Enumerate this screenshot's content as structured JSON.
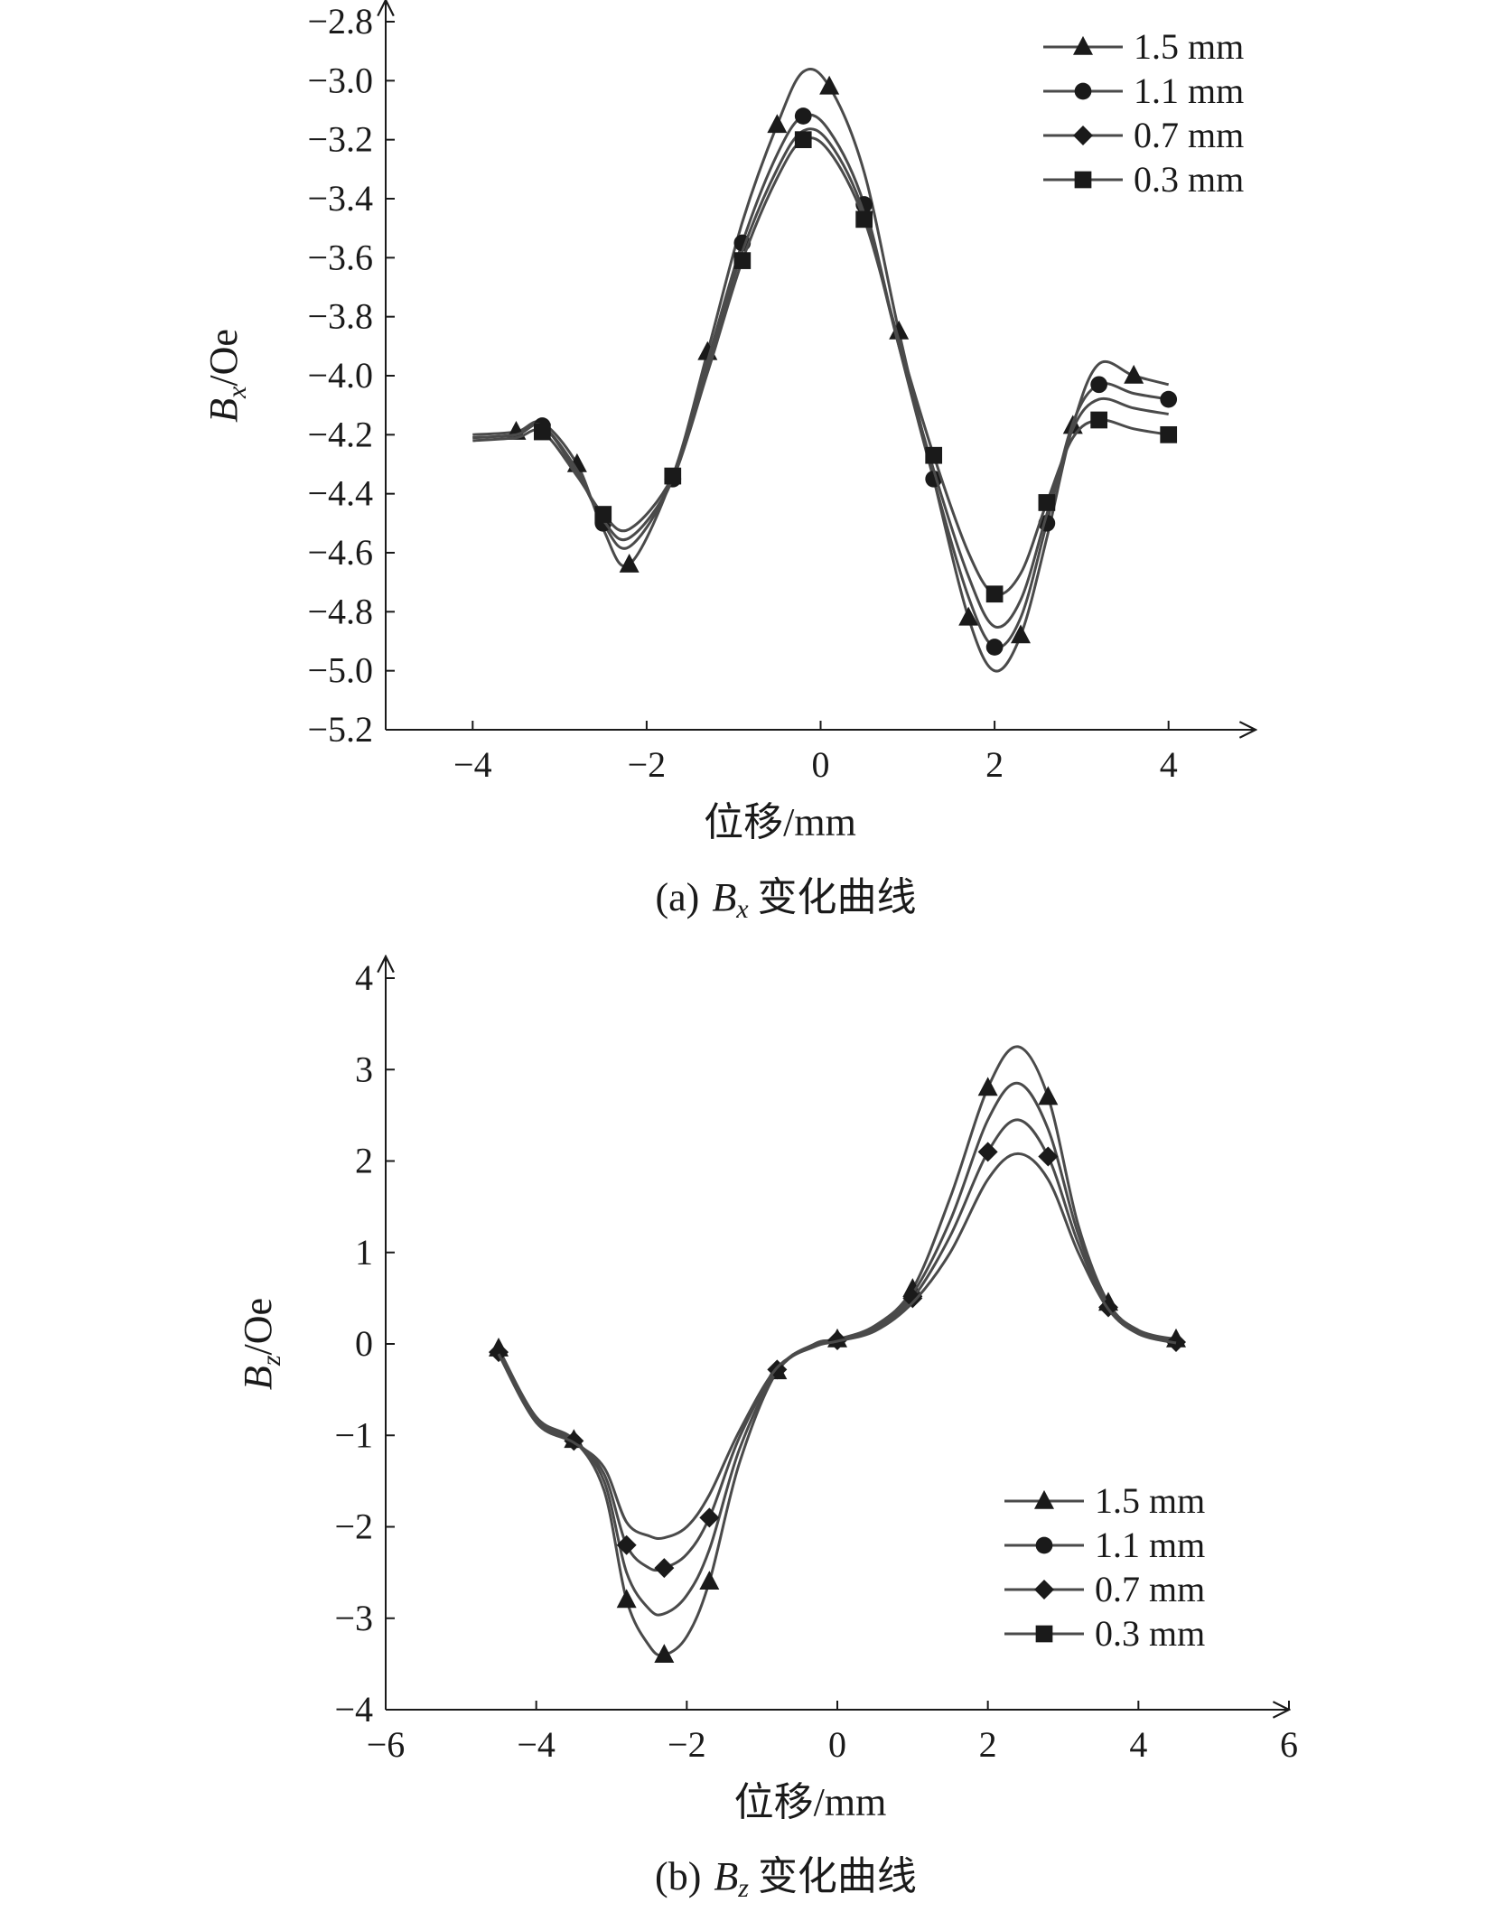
{
  "chart_data": [
    {
      "type": "line",
      "panel": "a",
      "caption": {
        "prefix": "(a)",
        "var_letter": "B",
        "var_sub": "x",
        "suffix": "变化曲线"
      },
      "xlabel": "位移/mm",
      "ylabel": {
        "letter": "B",
        "sub": "x",
        "unit": "/Oe"
      },
      "xlim": [
        -5,
        5
      ],
      "ylim": [
        -5.2,
        -2.8
      ],
      "xticks": [
        -4,
        -2,
        0,
        2,
        4
      ],
      "xtick_labels": [
        "−4",
        "−2",
        "0",
        "2",
        "4"
      ],
      "yticks": [
        -2.8,
        -3.0,
        -3.2,
        -3.4,
        -3.6,
        -3.8,
        -4.0,
        -4.2,
        -4.4,
        -4.6,
        -4.8,
        -5.0,
        -5.2
      ],
      "ytick_labels": [
        "−2.8",
        "−3.0",
        "−3.2",
        "−3.4",
        "−3.6",
        "−3.8",
        "−4.0",
        "−4.2",
        "−4.4",
        "−4.6",
        "−4.8",
        "−5.0",
        "−5.2"
      ],
      "grid": false,
      "legend_position": "top-right",
      "series": [
        {
          "name": "1.5 mm",
          "marker": "triangle",
          "x": [
            -4.0,
            -3.5,
            -3.2,
            -2.8,
            -2.5,
            -2.2,
            -1.7,
            -1.3,
            -0.9,
            -0.5,
            -0.2,
            0.1,
            0.5,
            0.9,
            1.3,
            1.7,
            2.0,
            2.3,
            2.6,
            2.9,
            3.2,
            3.6,
            4.0
          ],
          "y": [
            -4.2,
            -4.19,
            -4.16,
            -4.3,
            -4.52,
            -4.64,
            -4.34,
            -3.92,
            -3.48,
            -3.15,
            -2.97,
            -3.02,
            -3.31,
            -3.85,
            -4.35,
            -4.82,
            -5.0,
            -4.88,
            -4.55,
            -4.17,
            -3.96,
            -4.0,
            -4.03
          ]
        },
        {
          "name": "1.1 mm",
          "marker": "circle",
          "x": [
            -4.0,
            -3.5,
            -3.2,
            -2.8,
            -2.5,
            -2.2,
            -1.7,
            -1.3,
            -0.9,
            -0.5,
            -0.2,
            0.1,
            0.5,
            0.9,
            1.3,
            1.7,
            2.0,
            2.3,
            2.6,
            2.9,
            3.2,
            3.6,
            4.0
          ],
          "y": [
            -4.21,
            -4.2,
            -4.17,
            -4.32,
            -4.5,
            -4.58,
            -4.35,
            -3.95,
            -3.55,
            -3.25,
            -3.12,
            -3.17,
            -3.42,
            -3.9,
            -4.35,
            -4.75,
            -4.92,
            -4.82,
            -4.5,
            -4.16,
            -4.03,
            -4.06,
            -4.08
          ]
        },
        {
          "name": "0.7 mm",
          "marker": "diamond",
          "x": [
            -4.0,
            -3.5,
            -3.2,
            -2.8,
            -2.5,
            -2.2,
            -1.7,
            -1.3,
            -0.9,
            -0.5,
            -0.2,
            0.1,
            0.5,
            0.9,
            1.3,
            1.7,
            2.0,
            2.3,
            2.6,
            2.9,
            3.2,
            3.6,
            4.0
          ],
          "y": [
            -4.21,
            -4.2,
            -4.17,
            -4.33,
            -4.49,
            -4.55,
            -4.35,
            -3.97,
            -3.58,
            -3.3,
            -3.17,
            -3.21,
            -3.45,
            -3.9,
            -4.32,
            -4.68,
            -4.85,
            -4.76,
            -4.47,
            -4.18,
            -4.08,
            -4.11,
            -4.13
          ]
        },
        {
          "name": "0.3 mm",
          "marker": "square",
          "x": [
            -4.0,
            -3.5,
            -3.2,
            -2.8,
            -2.5,
            -2.2,
            -1.7,
            -1.3,
            -0.9,
            -0.5,
            -0.2,
            0.1,
            0.5,
            0.9,
            1.3,
            1.7,
            2.0,
            2.3,
            2.6,
            2.9,
            3.2,
            3.6,
            4.0
          ],
          "y": [
            -4.22,
            -4.21,
            -4.19,
            -4.34,
            -4.47,
            -4.52,
            -4.34,
            -3.99,
            -3.61,
            -3.33,
            -3.2,
            -3.24,
            -3.47,
            -3.88,
            -4.27,
            -4.6,
            -4.74,
            -4.67,
            -4.43,
            -4.21,
            -4.15,
            -4.18,
            -4.2
          ]
        }
      ]
    },
    {
      "type": "line",
      "panel": "b",
      "caption": {
        "prefix": "(b)",
        "var_letter": "B",
        "var_sub": "z",
        "suffix": "变化曲线"
      },
      "xlabel": "位移/mm",
      "ylabel": {
        "letter": "B",
        "sub": "z",
        "unit": "/Oe"
      },
      "xlim": [
        -6,
        6
      ],
      "ylim": [
        -4,
        4
      ],
      "xticks": [
        -6,
        -4,
        -2,
        0,
        2,
        4,
        6
      ],
      "xtick_labels": [
        "−6",
        "−4",
        "−2",
        "0",
        "2",
        "4",
        "6"
      ],
      "yticks": [
        4,
        3,
        2,
        1,
        0,
        -1,
        -2,
        -3,
        -4
      ],
      "ytick_labels": [
        "4",
        "3",
        "2",
        "1",
        "0",
        "−1",
        "−2",
        "−3",
        "−4"
      ],
      "grid": false,
      "legend_position": "bottom-right",
      "series": [
        {
          "name": "1.5 mm",
          "marker": "triangle",
          "x": [
            -4.5,
            -4.0,
            -3.5,
            -3.1,
            -2.8,
            -2.5,
            -2.3,
            -2.0,
            -1.7,
            -1.3,
            -0.8,
            -0.3,
            0.0,
            0.5,
            1.0,
            1.5,
            2.0,
            2.4,
            2.8,
            3.2,
            3.6,
            4.0,
            4.5
          ],
          "y": [
            -0.05,
            -0.8,
            -1.05,
            -1.6,
            -2.8,
            -3.3,
            -3.4,
            -3.2,
            -2.6,
            -1.3,
            -0.3,
            0.0,
            0.05,
            0.2,
            0.6,
            1.6,
            2.8,
            3.25,
            2.7,
            1.3,
            0.45,
            0.15,
            0.05
          ]
        },
        {
          "name": "1.1 mm",
          "marker": "circle",
          "x": [
            -4.5,
            -4.0,
            -3.5,
            -3.1,
            -2.8,
            -2.5,
            -2.3,
            -2.0,
            -1.7,
            -1.3,
            -0.8,
            -0.3,
            0.0,
            0.5,
            1.0,
            1.5,
            2.0,
            2.4,
            2.8,
            3.2,
            3.6,
            4.0,
            4.5
          ],
          "y": [
            -0.07,
            -0.82,
            -1.05,
            -1.5,
            -2.5,
            -2.9,
            -2.95,
            -2.75,
            -2.25,
            -1.15,
            -0.3,
            0.0,
            0.05,
            0.18,
            0.55,
            1.35,
            2.45,
            2.85,
            2.35,
            1.2,
            0.42,
            0.13,
            0.03
          ]
        },
        {
          "name": "0.7 mm",
          "marker": "diamond",
          "x": [
            -4.5,
            -4.0,
            -3.5,
            -3.1,
            -2.8,
            -2.5,
            -2.3,
            -2.0,
            -1.7,
            -1.3,
            -0.8,
            -0.3,
            0.0,
            0.5,
            1.0,
            1.5,
            2.0,
            2.4,
            2.8,
            3.2,
            3.6,
            4.0,
            4.5
          ],
          "y": [
            -0.09,
            -0.84,
            -1.06,
            -1.42,
            -2.2,
            -2.45,
            -2.45,
            -2.3,
            -1.9,
            -1.02,
            -0.28,
            -0.02,
            0.04,
            0.16,
            0.5,
            1.18,
            2.1,
            2.45,
            2.05,
            1.1,
            0.4,
            0.12,
            0.02
          ]
        },
        {
          "name": "0.3 mm",
          "marker": "square",
          "x": [
            -4.5,
            -4.0,
            -3.5,
            -3.1,
            -2.8,
            -2.5,
            -2.3,
            -2.0,
            -1.7,
            -1.3,
            -0.8,
            -0.3,
            0.0,
            0.5,
            1.0,
            1.5,
            2.0,
            2.4,
            2.8,
            3.2,
            3.6,
            4.0,
            4.5
          ],
          "y": [
            -0.11,
            -0.86,
            -1.08,
            -1.35,
            -1.95,
            -2.1,
            -2.12,
            -2.0,
            -1.65,
            -0.95,
            -0.26,
            -0.03,
            0.03,
            0.14,
            0.45,
            1.0,
            1.8,
            2.08,
            1.8,
            1.0,
            0.38,
            0.11,
            0.01
          ]
        }
      ]
    }
  ]
}
